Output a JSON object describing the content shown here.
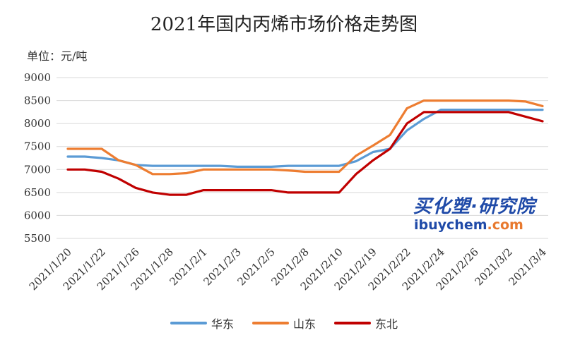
{
  "title": "2021年国内丙烯市场价格走势图",
  "unit_label": "单位：元/吨",
  "watermark": {
    "brand": "买化塑·研究院",
    "url_main": "ibuychem",
    "url_tld": ".com"
  },
  "chart_data": {
    "type": "line",
    "title": "2021年国内丙烯市场价格走势图",
    "ylabel": "单位：元/吨",
    "ylim": [
      5500,
      9000
    ],
    "yticks": [
      5500,
      6000,
      6500,
      7000,
      7500,
      8000,
      8500,
      9000
    ],
    "grid": true,
    "legend_position": "bottom",
    "x_tick_labels": [
      "2021/1/20",
      "2021/1/22",
      "2021/1/26",
      "2021/1/28",
      "2021/2/1",
      "2021/2/3",
      "2021/2/5",
      "2021/2/8",
      "2021/2/10",
      "2021/2/19",
      "2021/2/22",
      "2021/2/24",
      "2021/2/26",
      "2021/3/2",
      "2021/3/4"
    ],
    "x": [
      "2021/1/20",
      "2021/1/21",
      "2021/1/22",
      "2021/1/25",
      "2021/1/26",
      "2021/1/27",
      "2021/1/28",
      "2021/1/29",
      "2021/2/1",
      "2021/2/2",
      "2021/2/3",
      "2021/2/4",
      "2021/2/5",
      "2021/2/7",
      "2021/2/8",
      "2021/2/9",
      "2021/2/10",
      "2021/2/18",
      "2021/2/19",
      "2021/2/20",
      "2021/2/22",
      "2021/2/23",
      "2021/2/24",
      "2021/2/25",
      "2021/2/26",
      "2021/3/1",
      "2021/3/2",
      "2021/3/3",
      "2021/3/4"
    ],
    "series": [
      {
        "name": "华东",
        "color": "#5b9bd5",
        "values": [
          7280,
          7280,
          7250,
          7200,
          7100,
          7080,
          7080,
          7080,
          7080,
          7080,
          7060,
          7060,
          7060,
          7080,
          7080,
          7080,
          7080,
          7180,
          7380,
          7450,
          7850,
          8100,
          8300,
          8300,
          8300,
          8300,
          8300,
          8300,
          8300
        ]
      },
      {
        "name": "山东",
        "color": "#ed7d31",
        "values": [
          7450,
          7450,
          7450,
          7200,
          7100,
          6900,
          6900,
          6920,
          7000,
          7000,
          7000,
          7000,
          7000,
          6980,
          6950,
          6950,
          6950,
          7300,
          7520,
          7750,
          8330,
          8500,
          8500,
          8500,
          8500,
          8500,
          8500,
          8480,
          8380
        ]
      },
      {
        "name": "东北",
        "color": "#c00000",
        "values": [
          7000,
          7000,
          6950,
          6800,
          6600,
          6500,
          6450,
          6450,
          6550,
          6550,
          6550,
          6550,
          6550,
          6500,
          6500,
          6500,
          6500,
          6900,
          7200,
          7450,
          8000,
          8250,
          8250,
          8250,
          8250,
          8250,
          8250,
          8150,
          8050
        ]
      }
    ]
  }
}
